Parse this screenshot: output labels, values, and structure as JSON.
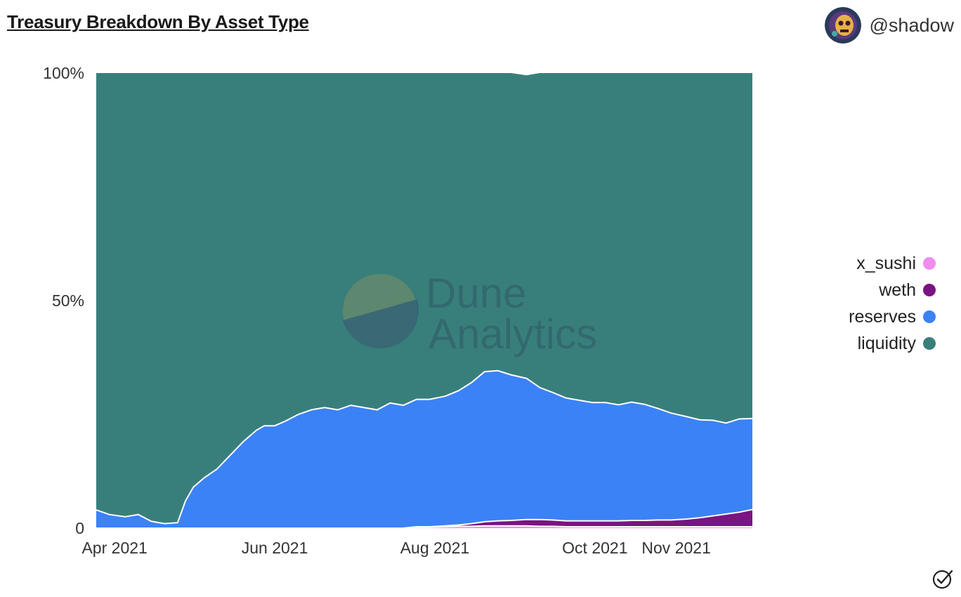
{
  "header": {
    "title": "Treasury Breakdown By Asset Type",
    "author": "@shadow"
  },
  "watermark": {
    "line1": "Dune",
    "line2": "Analytics"
  },
  "colors": {
    "x_sushi": "#f08df0",
    "weth": "#7a1480",
    "reserves": "#3b82f6",
    "liquidity": "#387f7c",
    "divider": "#ffffff"
  },
  "chart_data": {
    "type": "area",
    "stacked": "percent",
    "x_range": [
      "2021-03-25",
      "2021-11-30"
    ],
    "y_range": [
      0,
      100
    ],
    "y_ticks": [
      {
        "value": 0,
        "label": "0"
      },
      {
        "value": 50,
        "label": "50%"
      },
      {
        "value": 100,
        "label": "100%"
      }
    ],
    "x_ticks": [
      {
        "date": "2021-04-01",
        "label": "Apr 2021"
      },
      {
        "date": "2021-06-01",
        "label": "Jun 2021"
      },
      {
        "date": "2021-08-01",
        "label": "Aug 2021"
      },
      {
        "date": "2021-10-01",
        "label": "Oct 2021"
      },
      {
        "date": "2021-11-01",
        "label": "Nov 2021"
      }
    ],
    "legend_position": "right",
    "legend": [
      "x_sushi",
      "weth",
      "reserves",
      "liquidity"
    ],
    "dates": [
      "2021-03-25",
      "2021-03-30",
      "2021-04-05",
      "2021-04-10",
      "2021-04-15",
      "2021-04-20",
      "2021-04-25",
      "2021-04-28",
      "2021-05-01",
      "2021-05-05",
      "2021-05-10",
      "2021-05-15",
      "2021-05-20",
      "2021-05-25",
      "2021-05-28",
      "2021-06-01",
      "2021-06-05",
      "2021-06-10",
      "2021-06-15",
      "2021-06-20",
      "2021-06-25",
      "2021-06-30",
      "2021-07-05",
      "2021-07-10",
      "2021-07-15",
      "2021-07-20",
      "2021-07-25",
      "2021-07-30",
      "2021-08-05",
      "2021-08-10",
      "2021-08-15",
      "2021-08-20",
      "2021-08-25",
      "2021-08-30",
      "2021-09-05",
      "2021-09-10",
      "2021-09-15",
      "2021-09-20",
      "2021-09-25",
      "2021-09-30",
      "2021-10-05",
      "2021-10-10",
      "2021-10-15",
      "2021-10-20",
      "2021-10-25",
      "2021-10-30",
      "2021-11-05",
      "2021-11-10",
      "2021-11-15",
      "2021-11-20",
      "2021-11-25",
      "2021-11-30"
    ],
    "series": [
      {
        "name": "x_sushi",
        "values": [
          0,
          0,
          0,
          0,
          0,
          0,
          0,
          0,
          0,
          0,
          0,
          0,
          0,
          0,
          0,
          0,
          0,
          0,
          0,
          0,
          0,
          0,
          0,
          0,
          0,
          0,
          0.2,
          0.2,
          0.3,
          0.4,
          0.4,
          0.5,
          0.5,
          0.5,
          0.5,
          0.4,
          0.4,
          0.3,
          0.3,
          0.3,
          0.3,
          0.3,
          0.3,
          0.3,
          0.3,
          0.3,
          0.3,
          0.3,
          0.3,
          0.3,
          0.3,
          0.3
        ]
      },
      {
        "name": "weth",
        "values": [
          0,
          0,
          0,
          0,
          0,
          0,
          0,
          0,
          0,
          0,
          0,
          0,
          0,
          0,
          0,
          0,
          0,
          0,
          0,
          0,
          0,
          0,
          0,
          0,
          0,
          0,
          0.1,
          0.1,
          0.2,
          0.3,
          0.6,
          0.9,
          1.1,
          1.2,
          1.4,
          1.5,
          1.4,
          1.3,
          1.3,
          1.3,
          1.3,
          1.3,
          1.4,
          1.4,
          1.5,
          1.5,
          1.7,
          2.0,
          2.4,
          2.8,
          3.2,
          3.8
        ]
      },
      {
        "name": "reserves",
        "values": [
          4,
          3,
          2.5,
          3,
          1.5,
          1,
          1.2,
          6,
          9,
          11,
          13,
          16,
          19,
          21.5,
          22.5,
          22.5,
          23.5,
          25,
          26,
          26.5,
          26,
          27,
          26.5,
          26,
          27.5,
          27,
          28,
          28,
          28.5,
          29.5,
          31,
          33,
          33,
          32,
          31,
          29,
          28,
          27,
          26.5,
          26,
          26,
          25.5,
          26,
          25.5,
          24.5,
          23.5,
          22.5,
          21.5,
          21,
          20,
          20.5,
          20
        ]
      },
      {
        "name": "liquidity",
        "values": [
          96,
          97,
          97.5,
          97,
          98.5,
          99,
          98.8,
          94,
          91,
          89,
          87,
          84,
          81,
          78.5,
          77.5,
          77.5,
          76.5,
          75,
          74,
          73.5,
          74,
          73,
          73.5,
          74,
          72.5,
          73,
          71.7,
          71.7,
          71,
          69.8,
          68,
          65.6,
          65.4,
          66.3,
          66.6,
          69.1,
          70.2,
          71.4,
          71.9,
          72.4,
          72.4,
          72.9,
          72.3,
          72.8,
          73.7,
          74.7,
          75.5,
          76.2,
          76.3,
          76.9,
          76,
          75.9
        ]
      }
    ]
  }
}
